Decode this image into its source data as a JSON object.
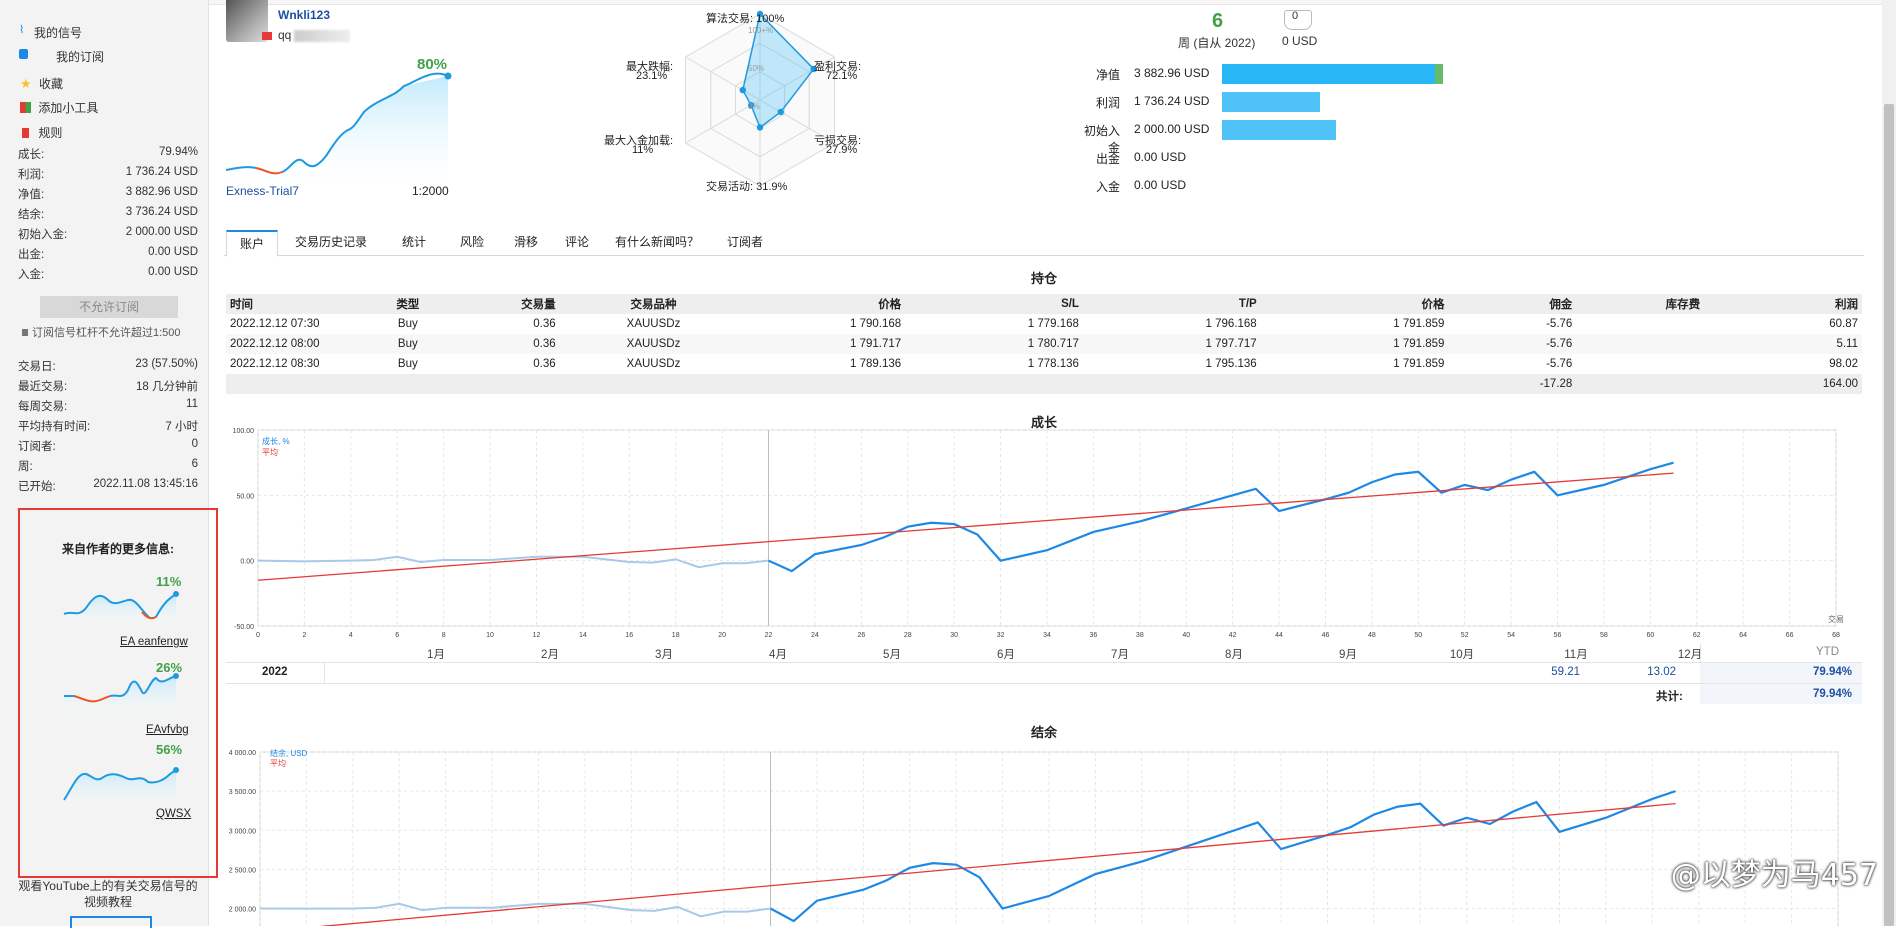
{
  "sidebar": {
    "nav": [
      {
        "label": "我的信号",
        "icon": "signal-icon"
      },
      {
        "label": "我的订阅",
        "icon": "subscription-icon"
      },
      {
        "label": "收藏",
        "icon": "star-icon"
      },
      {
        "label": "添加小工具",
        "icon": "widget-icon"
      },
      {
        "label": "规则",
        "icon": "bookmark-icon"
      }
    ],
    "stats": [
      {
        "k": "成长:",
        "v": "79.94%"
      },
      {
        "k": "利润:",
        "v": "1 736.24 USD"
      },
      {
        "k": "净值:",
        "v": "3 882.96 USD"
      },
      {
        "k": "结余:",
        "v": "3 736.24 USD"
      },
      {
        "k": "初始入金:",
        "v": "2 000.00 USD"
      },
      {
        "k": "出金:",
        "v": "0.00 USD"
      },
      {
        "k": "入金:",
        "v": "0.00 USD"
      }
    ],
    "no_subscribe": "不允许订阅",
    "leverage_note": "订阅信号杠杆不允许超过1:500",
    "stats2": [
      {
        "k": "交易日:",
        "v": "23 (57.50%)"
      },
      {
        "k": "最近交易:",
        "v": "18 几分钟前"
      },
      {
        "k": "每周交易:",
        "v": "11"
      },
      {
        "k": "平均持有时间:",
        "v": "7 小时"
      },
      {
        "k": "订阅者:",
        "v": "0"
      },
      {
        "k": "周:",
        "v": "6"
      },
      {
        "k": "已开始:",
        "v": "2022.11.08 13:45:16"
      }
    ],
    "author_title": "来自作者的更多信息:",
    "author_signals": [
      {
        "name": "EA eanfengw",
        "pct": "11%"
      },
      {
        "name": "EAvfvbg",
        "pct": "26%"
      },
      {
        "name": "QWSX",
        "pct": "56%"
      }
    ],
    "youtube_text": "观看YouTube上的有关交易信号的视频教程"
  },
  "header": {
    "username": "Wnkli123",
    "user_sub": "qq",
    "growth_pct": "80%",
    "broker": "Exness-Trial7",
    "leverage": "1:2000"
  },
  "radar": {
    "labels": {
      "algo": "算法交易: 100%",
      "profit": "盈利交易:",
      "profit_v": "72.1%",
      "loss": "亏损交易:",
      "loss_v": "27.9%",
      "activity": "交易活动: 31.9%",
      "maxdep": "最大入金加载:",
      "maxdep_v": "11%",
      "drawdown": "最大跌幅:",
      "drawdown_v": "23.1%",
      "r100": "100+%",
      "r50": "50%",
      "r0": "0%"
    },
    "values": {
      "algo": 1.0,
      "profit": 0.721,
      "loss": 0.279,
      "activity": 0.319,
      "maxdep": 0.11,
      "drawdown": 0.231
    }
  },
  "weeks": {
    "num": "6",
    "label": "周 (自从 2022)",
    "usd": "0 USD",
    "usd_top": "0"
  },
  "balance_bars": [
    {
      "k": "净值",
      "v": "3 882.96 USD",
      "fill": 0.97,
      "color": "#29b6f6"
    },
    {
      "k": "利润",
      "v": "1 736.24 USD",
      "fill": 0.43,
      "color": "#4fc3f7"
    },
    {
      "k": "初始入金",
      "v": "2 000.00 USD",
      "fill": 0.5,
      "color": "#4fc3f7"
    },
    {
      "k": "出金",
      "v": "0.00 USD",
      "fill": 0,
      "color": "#4fc3f7"
    },
    {
      "k": "入金",
      "v": "0.00 USD",
      "fill": 0,
      "color": "#4fc3f7"
    }
  ],
  "tabs": [
    "账户",
    "交易历史记录",
    "统计",
    "风险",
    "滑移",
    "评论",
    "有什么新闻吗？",
    "订阅者"
  ],
  "positions": {
    "title": "持仓",
    "columns": [
      "时间",
      "类型",
      "交易量",
      "交易品种",
      "价格",
      "S/L",
      "T/P",
      "价格",
      "佣金",
      "库存费",
      "利润"
    ],
    "rows": [
      [
        "2022.12.12 07:30",
        "Buy",
        "0.36",
        "XAUUSDz",
        "1 790.168",
        "1 779.168",
        "1 796.168",
        "1 791.859",
        "-5.76",
        "",
        "60.87"
      ],
      [
        "2022.12.12 08:00",
        "Buy",
        "0.36",
        "XAUUSDz",
        "1 791.717",
        "1 780.717",
        "1 797.717",
        "1 791.859",
        "-5.76",
        "",
        "5.11"
      ],
      [
        "2022.12.12 08:30",
        "Buy",
        "0.36",
        "XAUUSDz",
        "1 789.136",
        "1 778.136",
        "1 795.136",
        "1 791.859",
        "-5.76",
        "",
        "98.02"
      ]
    ],
    "totals": {
      "commission": "-17.28",
      "profit": "164.00"
    }
  },
  "growth_section": {
    "title": "成长",
    "legend_series": "成长, %",
    "legend_avg": "平均",
    "corner": "交易",
    "months": [
      "1月",
      "2月",
      "3月",
      "4月",
      "5月",
      "6月",
      "7月",
      "8月",
      "9月",
      "10月",
      "11月",
      "12月"
    ],
    "ytd_label": "YTD",
    "year": "2022",
    "nov": "59.21",
    "dec": "13.02",
    "ytd": "79.94%",
    "total_label": "共计:",
    "total": "79.94%"
  },
  "balance_section": {
    "title": "结余",
    "legend_series": "结余, USD",
    "legend_avg": "平均"
  },
  "watermark": "@以梦为马457",
  "chart_data": [
    {
      "type": "line",
      "title": "成长",
      "xlabel": "",
      "ylabel": "",
      "xlim": [
        0,
        68
      ],
      "ylim": [
        -50,
        100
      ],
      "xticks": [
        0,
        2,
        4,
        6,
        8,
        10,
        12,
        14,
        16,
        18,
        20,
        22,
        24,
        26,
        28,
        30,
        32,
        34,
        36,
        38,
        40,
        42,
        44,
        46,
        48,
        50,
        52,
        54,
        56,
        58,
        60,
        62,
        64,
        66,
        68
      ],
      "yticks": [
        "100.00",
        "50.00",
        "0.00",
        "-50.00"
      ],
      "series": [
        {
          "name": "成长, %",
          "x": [
            0,
            2,
            4,
            5,
            6,
            7,
            8,
            10,
            12,
            14,
            16,
            17,
            18,
            19,
            20,
            21,
            22,
            23,
            24,
            26,
            27,
            28,
            29,
            30,
            31,
            32,
            34,
            35,
            36,
            38,
            40,
            42,
            43,
            44,
            46,
            47,
            48,
            49,
            50,
            51,
            52,
            53,
            54,
            55,
            56,
            58,
            60,
            61
          ],
          "y": [
            0,
            -0.5,
            0,
            0.5,
            3,
            -1,
            0.5,
            0.5,
            3,
            3,
            -1,
            -1.5,
            1,
            -5,
            -2,
            -2,
            0,
            -8,
            5,
            12,
            18,
            26,
            29,
            28,
            20,
            0,
            8,
            15,
            22,
            30,
            40,
            50,
            55,
            38,
            47,
            52,
            60,
            66,
            68,
            52,
            58,
            54,
            62,
            68,
            50,
            58,
            70,
            75
          ]
        },
        {
          "name": "平均",
          "x": [
            0,
            61
          ],
          "y": [
            -15,
            67
          ]
        }
      ]
    },
    {
      "type": "line",
      "title": "结余",
      "xlabel": "",
      "ylabel": "",
      "ylim": [
        1700,
        4000
      ],
      "yticks": [
        "4 000.00",
        "3 500.00",
        "3 000.00",
        "2 500.00",
        "2 000.00"
      ],
      "series": [
        {
          "name": "结余, USD",
          "x": [
            0,
            2,
            4,
            5,
            6,
            7,
            8,
            10,
            12,
            14,
            16,
            17,
            18,
            19,
            20,
            21,
            22,
            23,
            24,
            26,
            27,
            28,
            29,
            30,
            31,
            32,
            34,
            35,
            36,
            38,
            40,
            42,
            43,
            44,
            46,
            47,
            48,
            49,
            50,
            51,
            52,
            53,
            54,
            55,
            56,
            58,
            60,
            61
          ],
          "y": [
            2000,
            1998,
            2000,
            2010,
            2060,
            1980,
            2010,
            2010,
            2060,
            2060,
            1980,
            1970,
            2020,
            1900,
            1960,
            1960,
            2000,
            1840,
            2100,
            2240,
            2360,
            2520,
            2580,
            2560,
            2400,
            2000,
            2160,
            2300,
            2440,
            2600,
            2800,
            3000,
            3100,
            2760,
            2940,
            3040,
            3200,
            3300,
            3340,
            3060,
            3160,
            3080,
            3240,
            3360,
            2980,
            3160,
            3400,
            3500
          ]
        },
        {
          "name": "平均",
          "x": [
            0,
            61
          ],
          "y": [
            1700,
            3340
          ]
        }
      ]
    }
  ]
}
